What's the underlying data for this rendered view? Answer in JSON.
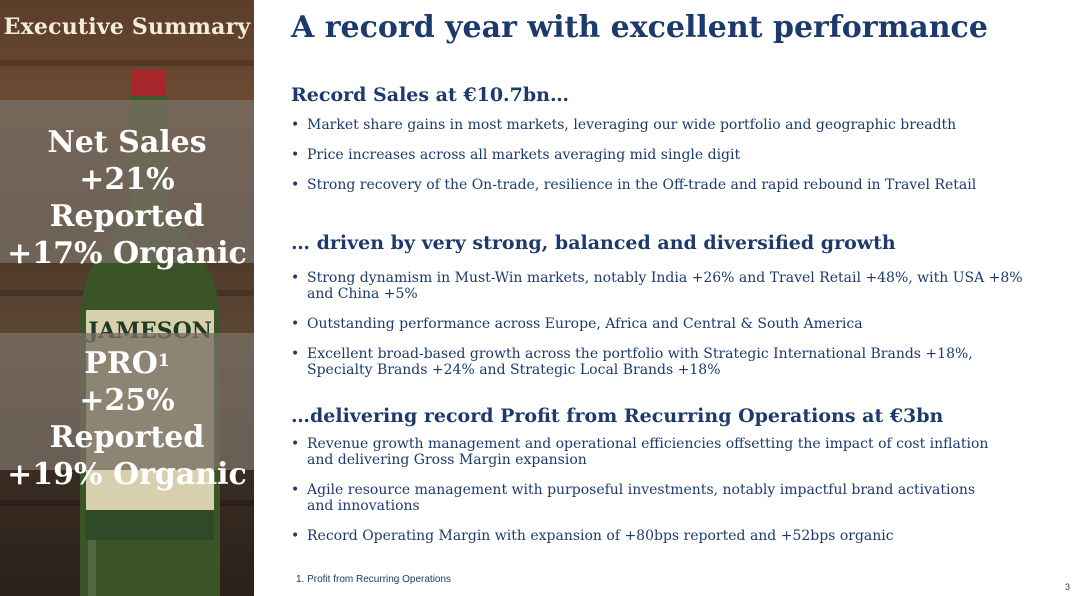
{
  "sidebar": {
    "title": "Executive Summary",
    "stat1": {
      "line1": "Net Sales",
      "line2": "+21% Reported",
      "line3": "+17% Organic"
    },
    "stat2": {
      "line1": "PRO",
      "line1_sup": "1",
      "line2": "+25% Reported",
      "line3": "+19% Organic"
    },
    "image_label": "JAMESON"
  },
  "main": {
    "title": "A record year with excellent performance",
    "sections": [
      {
        "heading": "Record Sales at €10.7bn…",
        "bullets": [
          "Market share gains in most markets, leveraging our wide portfolio and geographic breadth",
          "Price increases across all markets averaging mid single digit",
          "Strong recovery of the On-trade, resilience in the Off-trade and rapid rebound in Travel Retail"
        ]
      },
      {
        "heading": "… driven by very strong, balanced and diversified growth",
        "bullets": [
          "Strong dynamism in Must-Win markets, notably India +26% and Travel Retail +48%, with USA +8% and China +5%",
          "Outstanding performance across Europe, Africa and Central & South America",
          "Excellent broad-based growth across the portfolio with Strategic International Brands +18%, Specialty Brands +24% and Strategic Local Brands +18%"
        ]
      },
      {
        "heading": "…delivering record Profit from Recurring Operations at €3bn",
        "bullets": [
          "Revenue growth management and operational efficiencies offsetting the impact of cost inflation and delivering Gross Margin expansion",
          "Agile resource management with purposeful investments, notably impactful brand activations and innovations",
          "Record Operating Margin with expansion of +80bps reported and +52bps organic"
        ]
      }
    ]
  },
  "footer": {
    "footnote": "1.    Profit from Recurring Operations",
    "page_number": "3"
  }
}
